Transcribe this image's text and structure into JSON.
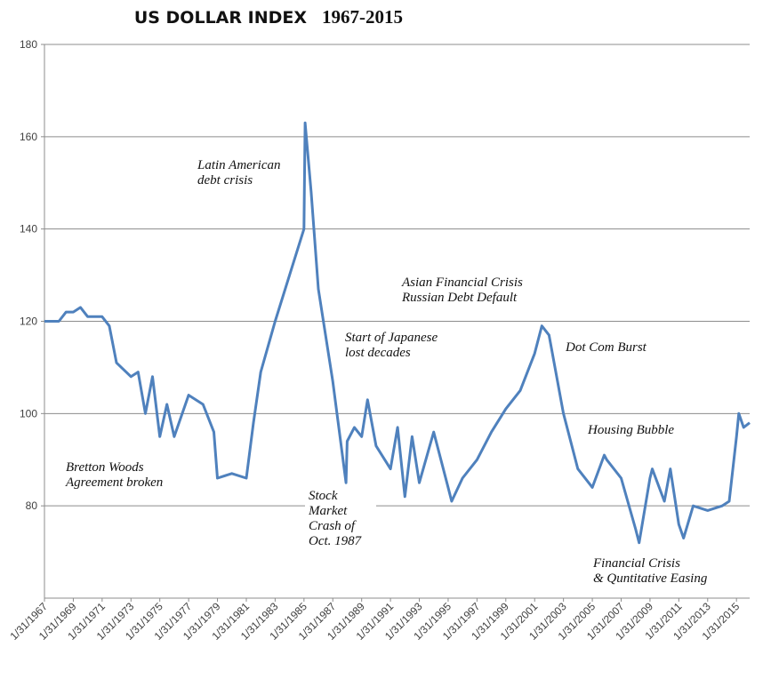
{
  "chart_data": {
    "type": "line",
    "title": "US DOLLAR INDEX",
    "subtitle": "1967-2015",
    "xlabel": "",
    "ylabel": "",
    "ylim": [
      60,
      180
    ],
    "yticks": [
      80,
      100,
      120,
      140,
      160,
      180
    ],
    "grid": true,
    "legend": "none",
    "color": "#4f81bd",
    "x_tick_labels": [
      "1/31/1967",
      "1/31/1969",
      "1/31/1971",
      "1/31/1973",
      "1/31/1975",
      "1/31/1977",
      "1/31/1979",
      "1/31/1981",
      "1/31/1983",
      "1/31/1985",
      "1/31/1987",
      "1/31/1989",
      "1/31/1991",
      "1/31/1993",
      "1/31/1995",
      "1/31/1997",
      "1/31/1999",
      "1/31/2001",
      "1/31/2003",
      "1/31/2005",
      "1/31/2007",
      "1/31/2009",
      "1/31/2011",
      "1/31/2013",
      "1/31/2015"
    ],
    "series": [
      {
        "x": [
          "1/31/1967",
          "1/31/1968",
          "7/31/1968",
          "1/31/1969",
          "7/31/1969",
          "1/31/1970",
          "1/31/1971",
          "7/31/1971",
          "1/31/1972",
          "1/31/1973",
          "7/31/1973",
          "1/31/1974",
          "7/31/1974",
          "1/31/1975",
          "7/31/1975",
          "1/31/1976",
          "1/31/1977",
          "1/31/1978",
          "10/31/1978",
          "1/31/1979",
          "1/31/1980",
          "1/31/1981",
          "7/31/1981",
          "1/31/1982",
          "1/31/1983",
          "1/31/1984",
          "1/31/1985",
          "2/28/1985",
          "7/31/1985",
          "1/31/1986",
          "1/31/1987",
          "12/31/1987",
          "1/31/1988",
          "7/31/1988",
          "1/31/1989",
          "6/30/1989",
          "1/31/1990",
          "1/31/1991",
          "7/31/1991",
          "1/31/1992",
          "7/31/1992",
          "1/31/1993",
          "1/31/1994",
          "1/31/1995",
          "4/30/1995",
          "1/31/1996",
          "1/31/1997",
          "1/31/1998",
          "1/31/1999",
          "1/31/2000",
          "1/31/2001",
          "7/31/2001",
          "1/31/2002",
          "1/31/2003",
          "1/31/2004",
          "1/31/2005",
          "11/30/2005",
          "1/31/2006",
          "1/31/2007",
          "1/31/2008",
          "4/30/2008",
          "1/31/2009",
          "3/31/2009",
          "1/31/2010",
          "6/30/2010",
          "1/31/2011",
          "5/31/2011",
          "1/31/2012",
          "1/31/2013",
          "1/31/2014",
          "7/31/2014",
          "1/31/2015",
          "3/31/2015",
          "7/31/2015",
          "12/31/2015"
        ],
        "values": [
          120,
          120,
          122,
          122,
          123,
          121,
          121,
          119,
          111,
          108,
          109,
          100,
          108,
          95,
          102,
          95,
          104,
          102,
          96,
          86,
          87,
          86,
          98,
          109,
          120,
          130,
          140,
          163,
          148,
          127,
          107,
          85,
          94,
          97,
          95,
          103,
          93,
          88,
          97,
          82,
          95,
          85,
          96,
          84,
          81,
          86,
          90,
          96,
          101,
          105,
          113,
          119,
          117,
          100,
          88,
          84,
          91,
          90,
          86,
          75,
          72,
          86,
          88,
          81,
          88,
          76,
          73,
          80,
          79,
          80,
          81,
          95,
          100,
          97,
          98
        ]
      }
    ],
    "annotations": [
      {
        "lines": [
          "Bretton Woods",
          "Agreement broken"
        ]
      },
      {
        "lines": [
          "Latin American",
          "debt crisis"
        ]
      },
      {
        "lines": [
          "Stock",
          "Market",
          "Crash of",
          "Oct. 1987"
        ]
      },
      {
        "lines": [
          "Start of Japanese",
          "lost decades"
        ]
      },
      {
        "lines": [
          "Asian Financial Crisis",
          "Russian Debt Default"
        ]
      },
      {
        "lines": [
          "Dot Com Burst"
        ]
      },
      {
        "lines": [
          "Housing Bubble"
        ]
      },
      {
        "lines": [
          "Financial Crisis",
          "& Quntitative Easing"
        ]
      }
    ]
  }
}
